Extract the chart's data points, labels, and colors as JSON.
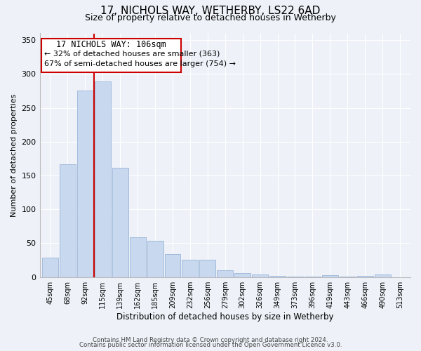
{
  "title": "17, NICHOLS WAY, WETHERBY, LS22 6AD",
  "subtitle": "Size of property relative to detached houses in Wetherby",
  "xlabel": "Distribution of detached houses by size in Wetherby",
  "ylabel": "Number of detached properties",
  "bar_labels": [
    "45sqm",
    "68sqm",
    "92sqm",
    "115sqm",
    "139sqm",
    "162sqm",
    "185sqm",
    "209sqm",
    "232sqm",
    "256sqm",
    "279sqm",
    "302sqm",
    "326sqm",
    "349sqm",
    "373sqm",
    "396sqm",
    "419sqm",
    "443sqm",
    "466sqm",
    "490sqm",
    "513sqm"
  ],
  "bar_values": [
    29,
    167,
    276,
    289,
    161,
    59,
    54,
    34,
    26,
    26,
    10,
    6,
    4,
    2,
    1,
    1,
    3,
    1,
    2,
    4,
    0
  ],
  "bar_color": "#c8d8ee",
  "bar_edge_color": "#9ab5d8",
  "annotation_title": "17 NICHOLS WAY: 106sqm",
  "annotation_line1": "← 32% of detached houses are smaller (363)",
  "annotation_line2": "67% of semi-detached houses are larger (754) →",
  "vline_color": "#cc0000",
  "box_edge_color": "#cc0000",
  "ylim": [
    0,
    360
  ],
  "yticks": [
    0,
    50,
    100,
    150,
    200,
    250,
    300,
    350
  ],
  "footer1": "Contains HM Land Registry data © Crown copyright and database right 2024.",
  "footer2": "Contains public sector information licensed under the Open Government Licence v3.0.",
  "bg_color": "#eef2f8",
  "plot_bg_color": "#eef2f8",
  "grid_color": "#ffffff"
}
